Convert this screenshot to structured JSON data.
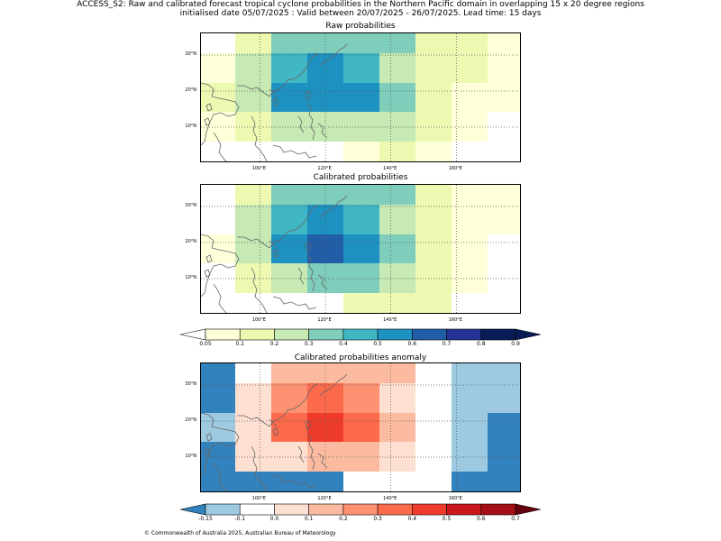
{
  "header": {
    "title_line1": "ACCESS_S2: Raw and calibrated forecast tropical cyclone probabilities in the Northern Pacific domain in overlapping 15 x 20 degree regions",
    "title_line2": "initialised date 05/07/2025 :  Valid between 20/07/2025 - 26/07/2025. Lead time: 15 days"
  },
  "axis": {
    "lon_ticks": [
      "100°E",
      "120°E",
      "140°E",
      "160°E"
    ],
    "lon_values": [
      100,
      120,
      140,
      160
    ],
    "lat_ticks": [
      "30°N",
      "20°N",
      "10°N"
    ],
    "lat_values": [
      30,
      20,
      10
    ],
    "lon_range": [
      82,
      180
    ],
    "lat_range": [
      0,
      36
    ]
  },
  "panels": [
    {
      "title": "Raw probabilities",
      "colors": [
        [
          "#ffffff",
          "#edf8b1",
          "#7fcdbb",
          "#7fcdbb",
          "#7fcdbb",
          "#7fcdbb",
          "#edf8b1",
          "#edf8b1",
          "#ffffd9"
        ],
        [
          "#ffffd9",
          "#c7e9b4",
          "#41b6c4",
          "#1d91c0",
          "#41b6c4",
          "#c7e9b4",
          "#edf8b1",
          "#edf8b1",
          "#ffffd9"
        ],
        [
          "#edf8b1",
          "#c7e9b4",
          "#1d91c0",
          "#1d91c0",
          "#1d91c0",
          "#7fcdbb",
          "#edf8b1",
          "#ffffd9",
          "#ffffd9"
        ],
        [
          "#ffffd9",
          "#edf8b1",
          "#c7e9b4",
          "#c7e9b4",
          "#c7e9b4",
          "#c7e9b4",
          "#edf8b1",
          "#ffffd9",
          "#ffffff"
        ],
        [
          "#ffffff",
          "#ffffff",
          "#ffffff",
          "#ffffff",
          "#ffffd9",
          "#edf8b1",
          "#ffffd9",
          "#ffffff",
          "#ffffff"
        ]
      ]
    },
    {
      "title": "Calibrated probabilities",
      "colors": [
        [
          "#ffffff",
          "#edf8b1",
          "#7fcdbb",
          "#7fcdbb",
          "#7fcdbb",
          "#7fcdbb",
          "#edf8b1",
          "#ffffd9",
          "#ffffd9"
        ],
        [
          "#ffffff",
          "#c7e9b4",
          "#41b6c4",
          "#1d91c0",
          "#41b6c4",
          "#c7e9b4",
          "#edf8b1",
          "#ffffd9",
          "#ffffd9"
        ],
        [
          "#ffffd9",
          "#c7e9b4",
          "#1d91c0",
          "#225ea8",
          "#1d91c0",
          "#7fcdbb",
          "#edf8b1",
          "#ffffd9",
          "#ffffff"
        ],
        [
          "#ffffff",
          "#edf8b1",
          "#c7e9b4",
          "#7fcdbb",
          "#7fcdbb",
          "#c7e9b4",
          "#edf8b1",
          "#ffffd9",
          "#ffffff"
        ],
        [
          "#ffffff",
          "#ffffff",
          "#ffffff",
          "#ffffff",
          "#edf8b1",
          "#edf8b1",
          "#edf8b1",
          "#ffffff",
          "#ffffff"
        ]
      ]
    },
    {
      "title": "Calibrated probabilities anomaly",
      "colors": [
        [
          "#3182bd",
          "#ffffff",
          "#fcbba1",
          "#fcbba1",
          "#fcbba1",
          "#fcbba1",
          "#ffffff",
          "#9ecae1",
          "#9ecae1"
        ],
        [
          "#3182bd",
          "#fee0d2",
          "#fc9272",
          "#fb6a4a",
          "#fc9272",
          "#fee0d2",
          "#ffffff",
          "#9ecae1",
          "#9ecae1"
        ],
        [
          "#9ecae1",
          "#fee0d2",
          "#fb6a4a",
          "#ef3b2c",
          "#fb6a4a",
          "#fcbba1",
          "#ffffff",
          "#9ecae1",
          "#3182bd"
        ],
        [
          "#3182bd",
          "#fee0d2",
          "#fee0d2",
          "#fcbba1",
          "#fcbba1",
          "#fee0d2",
          "#ffffff",
          "#9ecae1",
          "#3182bd"
        ],
        [
          "#3182bd",
          "#3182bd",
          "#3182bd",
          "#3182bd",
          "#ffffff",
          "#ffffff",
          "#ffffff",
          "#3182bd",
          "#3182bd"
        ]
      ]
    }
  ],
  "colorbar_prob": {
    "labels": [
      "0.05",
      "0.1",
      "0.2",
      "0.3",
      "0.4",
      "0.5",
      "0.6",
      "0.7",
      "0.8",
      "0.9"
    ],
    "colors": [
      "#ffffd9",
      "#edf8b1",
      "#c7e9b4",
      "#7fcdbb",
      "#41b6c4",
      "#1d91c0",
      "#225ea8",
      "#253494",
      "#081d58"
    ],
    "under_color": "#ffffff",
    "over_color": "#081d58"
  },
  "colorbar_anom": {
    "labels": [
      "-0.15",
      "-0.1",
      "0.0",
      "0.1",
      "0.2",
      "0.3",
      "0.4",
      "0.5",
      "0.6",
      "0.7"
    ],
    "colors": [
      "#9ecae1",
      "#ffffff",
      "#fee0d2",
      "#fcbba1",
      "#fc9272",
      "#fb6a4a",
      "#ef3b2c",
      "#cb181d",
      "#a50f15"
    ],
    "under_color": "#3182bd",
    "over_color": "#67000d"
  },
  "footer": "© Commonwealth of Australia 2025, Australian Bureau of Meteorology"
}
